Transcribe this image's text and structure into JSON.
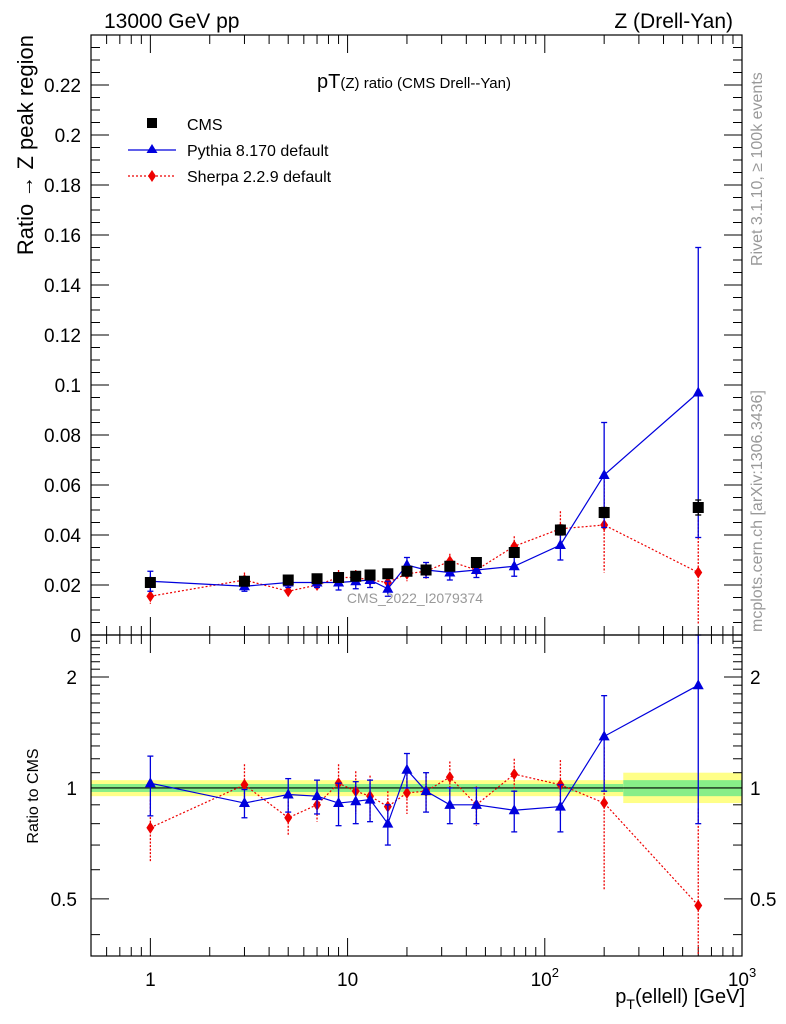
{
  "header": {
    "left": "13000 GeV pp",
    "right": "Z (Drell-Yan)",
    "side_rivet": "Rivet 3.1.10, ≥ 100k events",
    "side_mcplots": "mcplots.cern.ch [arXiv:1306.3436]"
  },
  "colors": {
    "cms": "#000000",
    "pythia": "#0000dd",
    "sherpa": "#ee0000",
    "band_outer": "#ffff88",
    "band_inner": "#88ee88"
  },
  "chart_data": [
    {
      "type": "scatter",
      "name": "main",
      "title": "pT(Z) ratio (CMS Drell--Yan)",
      "title_main": "pT",
      "title_sub": "(Z) ratio (CMS Drell--Yan)",
      "ylabel": "Ratio → Z peak region",
      "watermark": "CMS_2022_I2079374",
      "xscale": "log",
      "xlim": [
        0.5,
        1000
      ],
      "ylim": [
        0,
        0.24
      ],
      "yticks": [
        0,
        0.02,
        0.04,
        0.06,
        0.08,
        0.1,
        0.12,
        0.14,
        0.16,
        0.18,
        0.2,
        0.22
      ],
      "ytick_labels": [
        "0",
        "0.02",
        "0.04",
        "0.06",
        "0.08",
        "0.1",
        "0.12",
        "0.14",
        "0.16",
        "0.18",
        "0.2",
        "0.22"
      ],
      "legend": [
        "CMS",
        "Pythia 8.170 default",
        "Sherpa 2.2.9 default"
      ],
      "legend_position": "top-left",
      "x": [
        1,
        3,
        5,
        7,
        9,
        11,
        13,
        16,
        20,
        25,
        33,
        45,
        70,
        120,
        200,
        600
      ],
      "series": [
        {
          "name": "CMS",
          "marker": "square",
          "values": [
            0.021,
            0.0215,
            0.022,
            0.0225,
            0.023,
            0.0235,
            0.024,
            0.0245,
            0.0255,
            0.026,
            0.0275,
            0.029,
            0.033,
            0.042,
            0.049,
            0.051
          ],
          "errors": [
            0.001,
            0.001,
            0.001,
            0.001,
            0.001,
            0.001,
            0.001,
            0.001,
            0.001,
            0.001,
            0.001,
            0.001,
            0.0015,
            0.002,
            0.002,
            0.003
          ]
        },
        {
          "name": "Pythia 8.170 default",
          "marker": "triangle",
          "line": "solid",
          "values": [
            0.0215,
            0.0195,
            0.021,
            0.021,
            0.021,
            0.0215,
            0.022,
            0.0185,
            0.028,
            0.026,
            0.025,
            0.026,
            0.0275,
            0.036,
            0.064,
            0.097
          ],
          "errors": [
            0.004,
            0.002,
            0.002,
            0.002,
            0.003,
            0.003,
            0.003,
            0.003,
            0.003,
            0.003,
            0.003,
            0.003,
            0.004,
            0.006,
            0.021,
            0.058
          ]
        },
        {
          "name": "Sherpa 2.2.9 default",
          "marker": "diamond",
          "line": "dotted",
          "values": [
            0.0155,
            0.022,
            0.0175,
            0.02,
            0.023,
            0.023,
            0.022,
            0.021,
            0.0245,
            0.0255,
            0.0295,
            0.026,
            0.0355,
            0.0425,
            0.044,
            0.025
          ],
          "errors": [
            0.003,
            0.003,
            0.002,
            0.002,
            0.003,
            0.003,
            0.003,
            0.002,
            0.003,
            0.003,
            0.003,
            0.003,
            0.004,
            0.007,
            0.019,
            0.021
          ]
        }
      ]
    },
    {
      "type": "scatter",
      "name": "ratio",
      "ylabel": "Ratio to CMS",
      "xlabel": "p_T(ellell) [GeV]",
      "xlabel_main": "p",
      "xlabel_sub": "T",
      "xlabel_rest": "(ellell) [GeV]",
      "xscale": "log",
      "xlim": [
        0.5,
        1000
      ],
      "ylim": [
        0.35,
        2.6
      ],
      "ylog": true,
      "yticks": [
        0.5,
        1,
        2
      ],
      "ytick_labels": [
        "0.5",
        "1",
        "2"
      ],
      "xtick_labels": [
        {
          "base": "1",
          "exp": ""
        },
        {
          "base": "10",
          "exp": ""
        },
        {
          "base": "10",
          "exp": "2"
        },
        {
          "base": "10",
          "exp": "3"
        }
      ],
      "bands": [
        {
          "x0": 0.5,
          "x1": 250,
          "outer": [
            0.95,
            1.05
          ],
          "inner": [
            0.975,
            1.025
          ]
        },
        {
          "x0": 250,
          "x1": 1000,
          "outer": [
            0.91,
            1.1
          ],
          "inner": [
            0.95,
            1.05
          ]
        }
      ],
      "x": [
        1,
        3,
        5,
        7,
        9,
        11,
        13,
        16,
        20,
        25,
        33,
        45,
        70,
        120,
        200,
        600
      ],
      "series": [
        {
          "name": "Pythia 8.170 default",
          "marker": "triangle",
          "line": "solid",
          "values": [
            1.03,
            0.91,
            0.96,
            0.95,
            0.91,
            0.92,
            0.93,
            0.8,
            1.12,
            0.98,
            0.9,
            0.9,
            0.87,
            0.89,
            1.38,
            1.9
          ],
          "errors": [
            0.19,
            0.08,
            0.1,
            0.1,
            0.12,
            0.12,
            0.12,
            0.1,
            0.12,
            0.12,
            0.1,
            0.1,
            0.11,
            0.13,
            0.4,
            1.1
          ]
        },
        {
          "name": "Sherpa 2.2.9 default",
          "marker": "diamond",
          "line": "dotted",
          "values": [
            0.78,
            1.02,
            0.83,
            0.9,
            1.03,
            0.98,
            0.95,
            0.89,
            0.97,
            0.98,
            1.07,
            0.9,
            1.09,
            1.02,
            0.91,
            0.48
          ],
          "errors": [
            0.15,
            0.14,
            0.09,
            0.09,
            0.13,
            0.13,
            0.13,
            0.09,
            0.12,
            0.12,
            0.11,
            0.11,
            0.11,
            0.17,
            0.38,
            0.4
          ]
        }
      ]
    }
  ]
}
